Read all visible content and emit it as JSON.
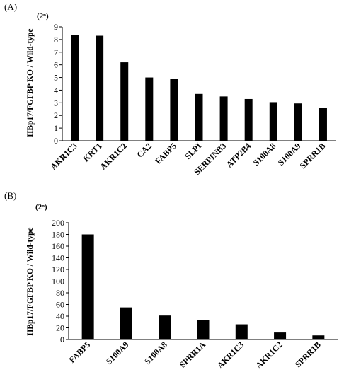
{
  "chart_data": [
    {
      "type": "bar",
      "panel_label": "(A)",
      "unit_label": "(2ⁿ)",
      "ylabel": "HBp17/FGFBP KO / Wild-type",
      "xlabel": "",
      "categories": [
        "AKR1C3",
        "KRT1",
        "AKR1C2",
        "CA2",
        "FABP5",
        "SLPI",
        "SERPINB3",
        "ATP2B4",
        "S100A8",
        "S100A9",
        "SPRR1B"
      ],
      "values": [
        8.35,
        8.3,
        6.2,
        5.0,
        4.9,
        3.7,
        3.5,
        3.3,
        3.05,
        2.95,
        2.6
      ],
      "ylim": [
        0,
        9
      ],
      "yticks": [
        "0",
        "1",
        "2",
        "3",
        "4",
        "5",
        "6",
        "7",
        "8",
        "9"
      ],
      "grid": false,
      "bar_color": "#000000"
    },
    {
      "type": "bar",
      "panel_label": "(B)",
      "unit_label": "(2ⁿ)",
      "ylabel": "HBp17/FGFBP KO / Wild-type",
      "xlabel": "",
      "categories": [
        "FABP5",
        "S100A9",
        "S100A8",
        "SPRR1A",
        "AKR1C3",
        "AKR1C2",
        "SPRR1B"
      ],
      "values": [
        180,
        55,
        41,
        33,
        26,
        12,
        7
      ],
      "ylim": [
        0,
        200
      ],
      "yticks": [
        "0",
        "20",
        "40",
        "60",
        "80",
        "100",
        "120",
        "140",
        "160",
        "180",
        "200"
      ],
      "grid": false,
      "bar_color": "#000000"
    }
  ]
}
